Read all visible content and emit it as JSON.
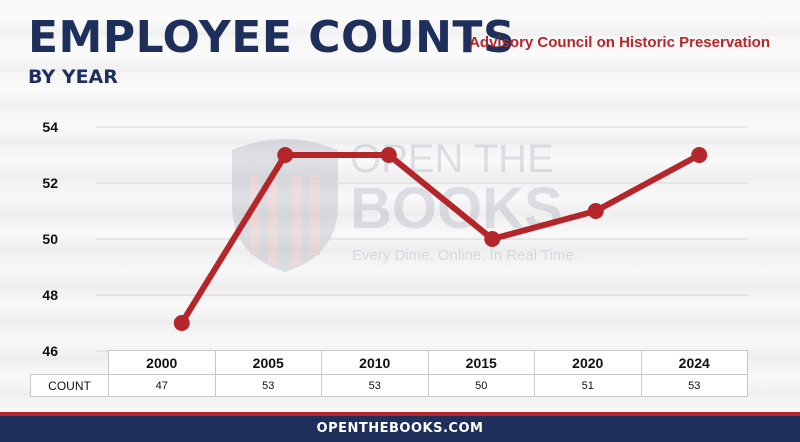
{
  "header": {
    "title": "EMPLOYEE COUNTS",
    "subtitle": "BY YEAR",
    "agency": "Advisory Council on Historic Preservation"
  },
  "watermark": {
    "line1": "OPEN THE",
    "line2": "BOOKS",
    "tagline": "Every Dime. Online. In Real Time."
  },
  "table": {
    "row_label": "COUNT"
  },
  "footer": {
    "text": "OPENTHEBOOKS.COM"
  },
  "colors": {
    "line": "#b5262b",
    "title": "#1f2f5c",
    "footer_bg": "#1f2f5c",
    "accent": "#b5262b"
  },
  "chart_data": {
    "type": "line",
    "title": "EMPLOYEE COUNTS",
    "subtitle": "BY YEAR",
    "categories": [
      "2000",
      "2005",
      "2010",
      "2015",
      "2020",
      "2024"
    ],
    "series": [
      {
        "values": [
          47,
          53,
          53,
          50,
          51,
          53
        ]
      }
    ],
    "y_ticks": [
      46,
      48,
      50,
      52,
      54
    ],
    "ylim": [
      46,
      54
    ],
    "grid": true,
    "xlabel": "",
    "ylabel": ""
  }
}
